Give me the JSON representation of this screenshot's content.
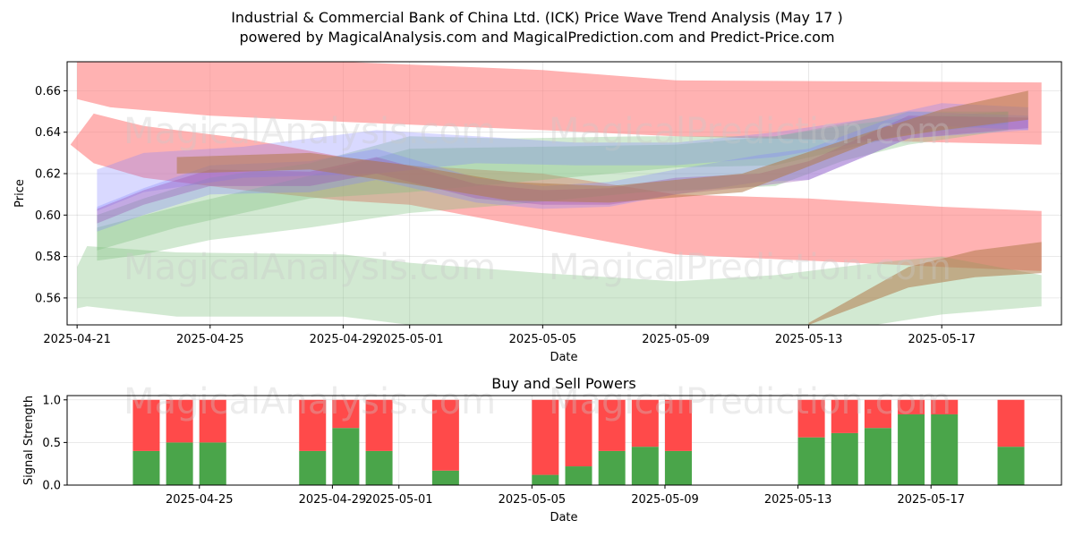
{
  "title_line1": "Industrial & Commercial Bank of China Ltd. (ICK) Price Wave Trend Analysis (May 17 )",
  "title_line2": "powered by MagicalAnalysis.com and MagicalPrediction.com and Predict-Price.com",
  "watermarks": [
    "MagicalAnalysis.com",
    "MagicalPrediction.com"
  ],
  "colors": {
    "red_band": "#ff7f7f",
    "green_band": "#7fbf7f",
    "blue_band": "#8080ff",
    "purple_band": "#9a4fb0",
    "buy_bar": "#4aa54a",
    "sell_bar": "#ff4a4a"
  },
  "chart_data": [
    {
      "type": "area",
      "title": "",
      "xlabel": "Date",
      "ylabel": "Price",
      "x_range": [
        "2025-04-20.7",
        "2025-05-20.6"
      ],
      "ylim": [
        0.547,
        0.674
      ],
      "y_ticks": [
        0.56,
        0.58,
        0.6,
        0.62,
        0.64,
        0.66
      ],
      "x_ticks": [
        "2025-04-21",
        "2025-04-25",
        "2025-04-29",
        "2025-05-01",
        "2025-05-05",
        "2025-05-09",
        "2025-05-13",
        "2025-05-17"
      ],
      "grid": true,
      "wave_bands": [
        {
          "name": "red upper",
          "color": "red",
          "x": [
            0,
            1,
            4,
            8,
            14,
            18,
            29
          ],
          "lower": [
            0.656,
            0.652,
            0.648,
            0.645,
            0.641,
            0.638,
            0.634
          ],
          "upper": [
            0.674,
            0.674,
            0.674,
            0.674,
            0.67,
            0.665,
            0.664
          ]
        },
        {
          "name": "red lower",
          "color": "red",
          "x": [
            -0.2,
            0.5,
            2,
            5,
            8,
            10,
            14,
            18,
            22,
            26,
            29
          ],
          "lower": [
            0.634,
            0.625,
            0.618,
            0.612,
            0.607,
            0.605,
            0.593,
            0.581,
            0.578,
            0.575,
            0.573
          ],
          "upper": [
            0.634,
            0.649,
            0.643,
            0.637,
            0.628,
            0.624,
            0.62,
            0.61,
            0.608,
            0.604,
            0.602
          ]
        },
        {
          "name": "green lower",
          "color": "green",
          "x": [
            0,
            0.3,
            3,
            8,
            10,
            14,
            18,
            21,
            24,
            26,
            29
          ],
          "lower": [
            0.555,
            0.556,
            0.551,
            0.551,
            0.547,
            0.547,
            0.547,
            0.547,
            0.547,
            0.552,
            0.556
          ],
          "upper": [
            0.575,
            0.585,
            0.582,
            0.581,
            0.577,
            0.572,
            0.568,
            0.571,
            0.577,
            0.58,
            0.571
          ]
        },
        {
          "name": "green spread 1",
          "color": "green",
          "x": [
            0.6,
            2,
            4,
            7,
            10,
            13,
            17,
            21,
            23,
            25,
            28
          ],
          "lower": [
            0.578,
            0.581,
            0.588,
            0.594,
            0.601,
            0.605,
            0.611,
            0.614,
            0.626,
            0.634,
            0.641
          ],
          "upper": [
            0.6,
            0.608,
            0.618,
            0.625,
            0.638,
            0.637,
            0.638,
            0.638,
            0.643,
            0.647,
            0.65
          ]
        },
        {
          "name": "green spread 2",
          "color": "green",
          "x": [
            0.6,
            3,
            7,
            10,
            14,
            18,
            21,
            25,
            28
          ],
          "lower": [
            0.583,
            0.594,
            0.608,
            0.611,
            0.617,
            0.623,
            0.624,
            0.639,
            0.644
          ],
          "upper": [
            0.594,
            0.604,
            0.619,
            0.632,
            0.633,
            0.634,
            0.638,
            0.65,
            0.65
          ]
        },
        {
          "name": "blue upper",
          "color": "blue",
          "x": [
            0.6,
            2,
            5,
            9,
            12,
            15,
            18,
            21,
            24,
            26,
            28.6
          ],
          "lower": [
            0.602,
            0.611,
            0.618,
            0.62,
            0.625,
            0.624,
            0.624,
            0.628,
            0.636,
            0.643,
            0.641
          ],
          "upper": [
            0.622,
            0.63,
            0.633,
            0.641,
            0.638,
            0.635,
            0.635,
            0.64,
            0.647,
            0.654,
            0.652
          ]
        },
        {
          "name": "blue lower",
          "color": "blue",
          "x": [
            0.6,
            2,
            4,
            7,
            9,
            12,
            14,
            16,
            18,
            20.5,
            22,
            25,
            28.6
          ],
          "lower": [
            0.592,
            0.6,
            0.61,
            0.611,
            0.617,
            0.606,
            0.603,
            0.604,
            0.61,
            0.616,
            0.617,
            0.637,
            0.641
          ],
          "upper": [
            0.604,
            0.613,
            0.624,
            0.626,
            0.632,
            0.618,
            0.614,
            0.616,
            0.622,
            0.629,
            0.632,
            0.65,
            0.648
          ]
        },
        {
          "name": "purple core",
          "color": "purple",
          "x": [
            0.6,
            2,
            4,
            7,
            9,
            12,
            14,
            16,
            18,
            20.5,
            22,
            25,
            28.6
          ],
          "lower": [
            0.596,
            0.605,
            0.614,
            0.614,
            0.62,
            0.608,
            0.605,
            0.605,
            0.61,
            0.614,
            0.617,
            0.637,
            0.642
          ],
          "upper": [
            0.603,
            0.612,
            0.622,
            0.621,
            0.628,
            0.615,
            0.612,
            0.613,
            0.618,
            0.62,
            0.626,
            0.648,
            0.647
          ]
        },
        {
          "name": "brown upper",
          "color": "brown",
          "x": [
            3,
            7,
            10,
            13,
            16,
            20,
            24,
            26,
            28.6
          ],
          "lower": [
            0.62,
            0.622,
            0.615,
            0.607,
            0.606,
            0.611,
            0.636,
            0.641,
            0.646
          ],
          "upper": [
            0.628,
            0.63,
            0.624,
            0.616,
            0.614,
            0.62,
            0.641,
            0.651,
            0.66
          ]
        },
        {
          "name": "brown lower",
          "color": "brown",
          "x": [
            22,
            25,
            27,
            29
          ],
          "lower": [
            0.547,
            0.565,
            0.57,
            0.572
          ],
          "upper": [
            0.548,
            0.575,
            0.583,
            0.587
          ]
        }
      ]
    },
    {
      "type": "bar",
      "title": "Buy and Sell Powers",
      "xlabel": "Date",
      "ylabel": "Signal Strength",
      "ylim": [
        0,
        1.05
      ],
      "y_ticks": [
        "0.0",
        "0.5",
        "1.0"
      ],
      "x_ticks": [
        "2025-04-25",
        "2025-04-29",
        "2025-05-01",
        "2025-05-05",
        "2025-05-09",
        "2025-05-13",
        "2025-05-17"
      ],
      "grid": true,
      "series": [
        {
          "name": "Buy",
          "color": "green",
          "days": [
            2,
            3,
            4,
            7,
            8,
            9,
            11,
            14,
            15,
            16,
            17,
            18,
            22,
            23,
            24,
            25,
            26,
            28
          ],
          "values": [
            0.4,
            0.5,
            0.5,
            0.4,
            0.67,
            0.4,
            0.17,
            0.12,
            0.22,
            0.4,
            0.45,
            0.4,
            0.56,
            0.61,
            0.67,
            0.83,
            0.83,
            0.45
          ]
        },
        {
          "name": "Sell",
          "color": "red",
          "days": [
            2,
            3,
            4,
            7,
            8,
            9,
            11,
            14,
            15,
            16,
            17,
            18,
            22,
            23,
            24,
            25,
            26,
            28
          ],
          "values": [
            0.6,
            0.5,
            0.5,
            0.6,
            0.33,
            0.6,
            0.83,
            0.88,
            0.78,
            0.6,
            0.55,
            0.6,
            0.44,
            0.39,
            0.33,
            0.17,
            0.17,
            0.55
          ]
        }
      ]
    }
  ]
}
